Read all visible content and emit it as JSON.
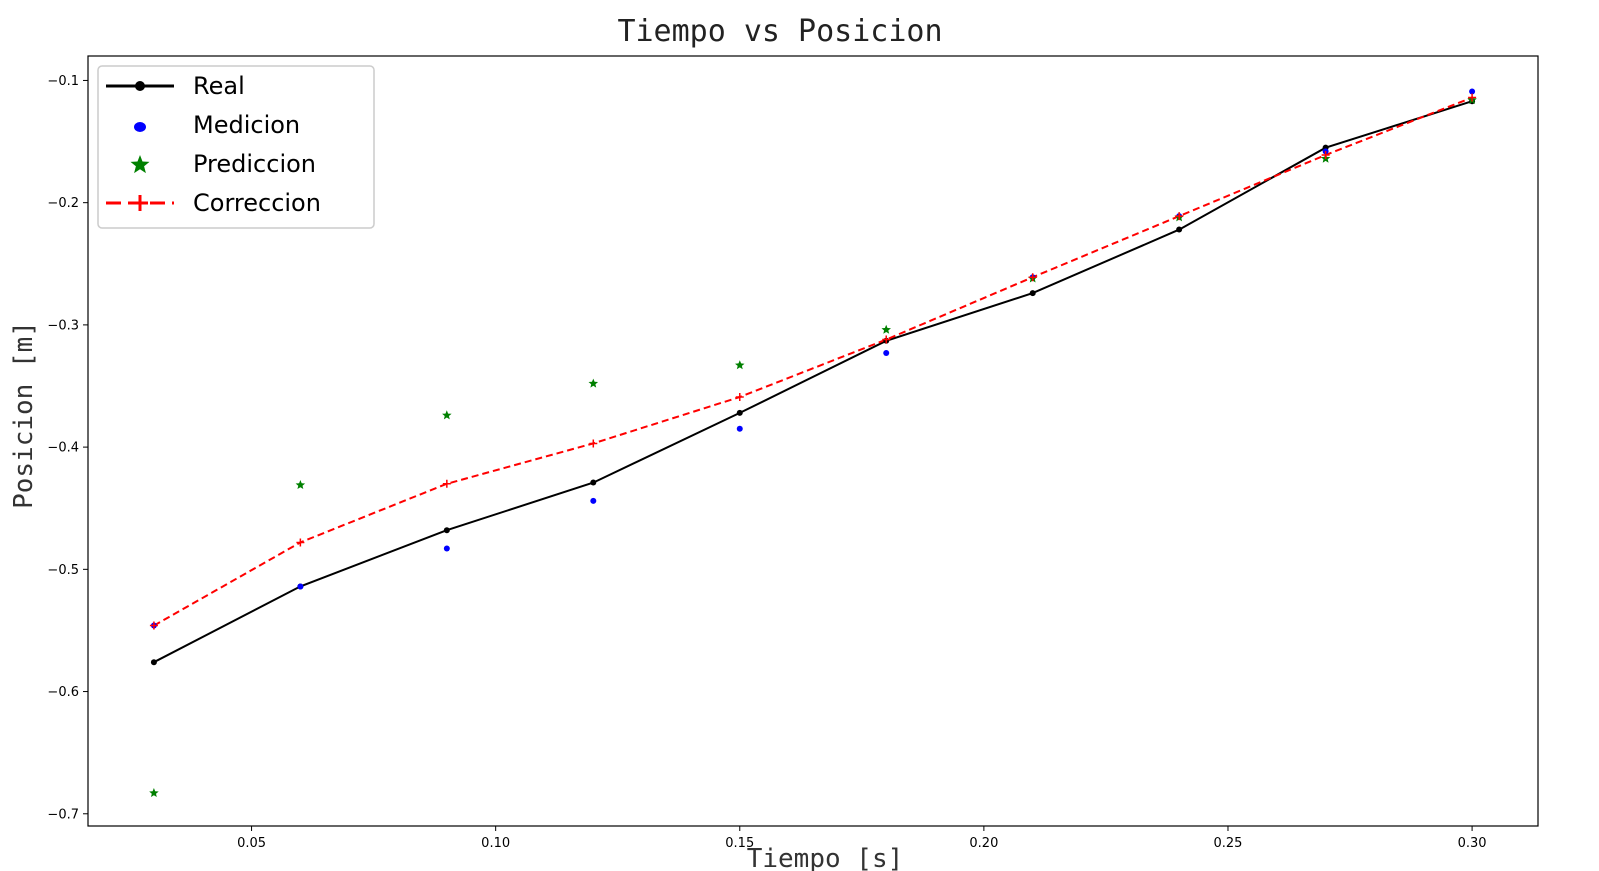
{
  "chart_data": {
    "type": "line",
    "title": "Tiempo vs Posicion",
    "xlabel": "Tiempo [s]",
    "ylabel": "Posicion [m]",
    "xlim": [
      0.0165,
      0.3135
    ],
    "ylim": [
      -0.71,
      -0.08
    ],
    "xticks": [
      0.05,
      0.1,
      0.15,
      0.2,
      0.25,
      0.3
    ],
    "xtick_labels": [
      "0.05",
      "0.10",
      "0.15",
      "0.20",
      "0.25",
      "0.30"
    ],
    "yticks": [
      -0.1,
      -0.2,
      -0.3,
      -0.4,
      -0.5,
      -0.6,
      -0.7
    ],
    "ytick_labels": [
      "−0.1",
      "−0.2",
      "−0.3",
      "−0.4",
      "−0.5",
      "−0.6",
      "−0.7"
    ],
    "grid": false,
    "legend_position": "top-left",
    "x": [
      0.03,
      0.06,
      0.09,
      0.12,
      0.15,
      0.18,
      0.21,
      0.24,
      0.27,
      0.3
    ],
    "series": [
      {
        "name": "Real",
        "style": "line-dot",
        "color": "#000000",
        "values": [
          -0.576,
          -0.514,
          -0.468,
          -0.429,
          -0.372,
          -0.313,
          -0.274,
          -0.222,
          -0.155,
          -0.117
        ]
      },
      {
        "name": "Medicion",
        "style": "dot",
        "color": "#0000ff",
        "values": [
          -0.546,
          -0.514,
          -0.483,
          -0.444,
          -0.385,
          -0.323,
          -0.261,
          -0.211,
          -0.158,
          -0.109
        ]
      },
      {
        "name": "Prediccion",
        "style": "star",
        "color": "#008000",
        "values": [
          -0.683,
          -0.431,
          -0.374,
          -0.348,
          -0.333,
          -0.304,
          -0.262,
          -0.212,
          -0.164,
          -0.116
        ]
      },
      {
        "name": "Correccion",
        "style": "dashed-plus",
        "color": "#ff0000",
        "values": [
          -0.546,
          -0.478,
          -0.43,
          -0.397,
          -0.359,
          -0.312,
          -0.261,
          -0.211,
          -0.161,
          -0.114
        ]
      }
    ]
  }
}
